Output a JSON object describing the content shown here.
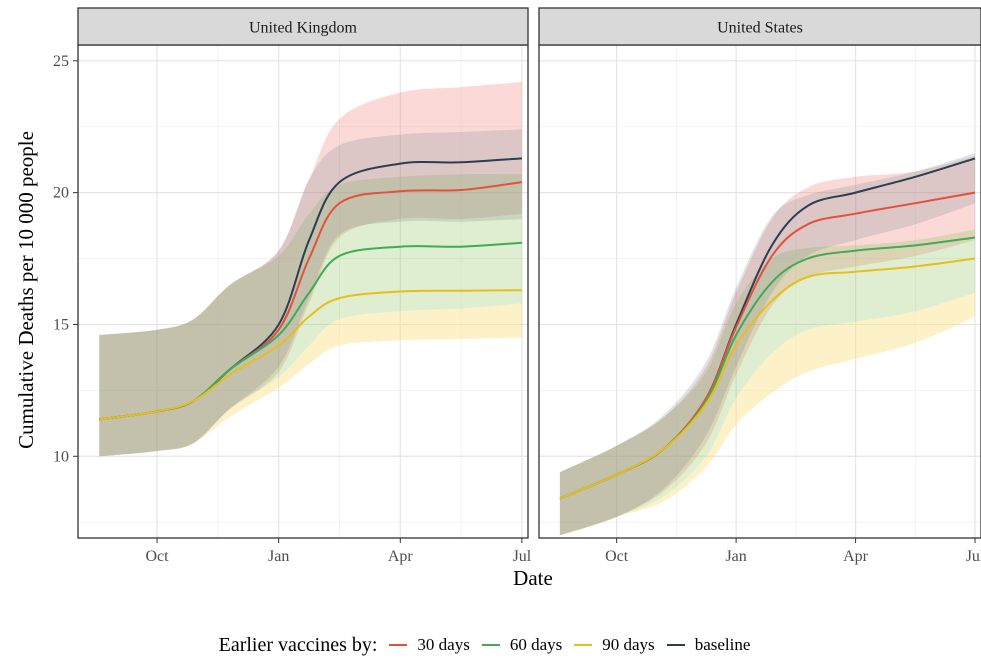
{
  "chart_data": {
    "type": "line",
    "ylabel": "Cumulative Deaths per 10 000 people",
    "xlabel": "Date",
    "ylim": [
      6.9,
      25.6
    ],
    "y_ticks": [
      10,
      15,
      20,
      25
    ],
    "x_ticks": [
      "Oct",
      "Jan",
      "Apr",
      "Jul"
    ],
    "legend_position": "bottom",
    "legend_title": "Earlier vaccines by:",
    "series_names": [
      "30 days",
      "60 days",
      "90 days",
      "baseline"
    ],
    "series_colors": {
      "30 days": "#E1523D",
      "60 days": "#3FAA59",
      "90 days": "#E6BE1E",
      "baseline": "#2C3E50"
    },
    "x_units": "months since 1 Oct",
    "facets": [
      {
        "title": "United Kingdom",
        "series": [
          {
            "name": "baseline",
            "x": [
              -0.95,
              0,
              0.6,
              1.2,
              2,
              2.5,
              3.0,
              4,
              5,
              6
            ],
            "values": [
              11.4,
              11.7,
              12.1,
              13.3,
              15.0,
              18.2,
              20.4,
              21.1,
              21.15,
              21.3
            ]
          },
          {
            "name": "30 days",
            "x": [
              -0.95,
              0,
              0.6,
              1.2,
              2,
              2.5,
              3.0,
              4,
              5,
              6
            ],
            "values": [
              11.4,
              11.7,
              12.1,
              13.3,
              14.8,
              17.5,
              19.6,
              20.05,
              20.1,
              20.4
            ]
          },
          {
            "name": "60 days",
            "x": [
              -0.95,
              0,
              0.6,
              1.2,
              2,
              2.5,
              3.0,
              4,
              5,
              6
            ],
            "values": [
              11.4,
              11.7,
              12.1,
              13.3,
              14.6,
              16.2,
              17.6,
              17.95,
              17.95,
              18.1
            ]
          },
          {
            "name": "90 days",
            "x": [
              -0.95,
              0,
              0.6,
              1.2,
              2,
              2.5,
              3.0,
              4,
              5,
              6
            ],
            "values": [
              11.4,
              11.7,
              12.1,
              13.1,
              14.2,
              15.3,
              16.0,
              16.25,
              16.28,
              16.3
            ]
          }
        ],
        "bands": [
          {
            "name": "30 days",
            "x": [
              -0.95,
              0,
              0.6,
              1.2,
              2,
              2.5,
              3.0,
              4,
              5,
              6
            ],
            "lower": [
              10.0,
              10.2,
              10.5,
              11.8,
              13.2,
              15.8,
              18.3,
              19.0,
              19.0,
              19.2
            ],
            "upper": [
              14.6,
              14.8,
              15.2,
              16.5,
              17.8,
              20.5,
              22.8,
              23.8,
              24.0,
              24.2
            ]
          },
          {
            "name": "60 days",
            "x": [
              -0.95,
              0,
              0.6,
              1.2,
              2,
              2.5,
              3.0,
              4,
              5,
              6
            ],
            "lower": [
              10.0,
              10.2,
              10.5,
              11.8,
              13.0,
              14.2,
              15.2,
              15.5,
              15.6,
              15.8
            ],
            "upper": [
              14.6,
              14.8,
              15.2,
              16.5,
              17.6,
              19.2,
              20.3,
              20.6,
              20.7,
              20.7
            ]
          },
          {
            "name": "90 days",
            "x": [
              -0.95,
              0,
              0.6,
              1.2,
              2,
              2.5,
              3.0,
              4,
              5,
              6
            ],
            "lower": [
              10.0,
              10.2,
              10.5,
              11.5,
              12.6,
              13.5,
              14.2,
              14.4,
              14.45,
              14.5
            ]
          },
          {
            "name": "baseline",
            "x": [
              -0.95,
              0,
              0.6,
              1.2,
              2,
              2.5,
              3.0,
              4,
              5,
              6
            ],
            "lower": [
              10.0,
              10.2,
              10.5,
              11.8,
              13.4,
              16.0,
              18.4,
              18.9,
              18.9,
              19.0
            ],
            "upper": [
              14.6,
              14.8,
              15.2,
              16.5,
              17.8,
              20.5,
              21.8,
              22.2,
              22.3,
              22.4
            ]
          }
        ]
      },
      {
        "title": "United States",
        "series": [
          {
            "name": "baseline",
            "x": [
              -0.95,
              0,
              0.8,
              1.5,
              2,
              2.6,
              3.2,
              4,
              5,
              6
            ],
            "values": [
              8.4,
              9.3,
              10.3,
              12.2,
              15.0,
              18.0,
              19.5,
              20.0,
              20.6,
              21.3
            ]
          },
          {
            "name": "30 days",
            "x": [
              -0.95,
              0,
              0.8,
              1.5,
              2,
              2.6,
              3.2,
              4,
              5,
              6
            ],
            "values": [
              8.4,
              9.3,
              10.3,
              12.2,
              14.9,
              17.6,
              18.8,
              19.2,
              19.6,
              20.0
            ]
          },
          {
            "name": "60 days",
            "x": [
              -0.95,
              0,
              0.8,
              1.5,
              2,
              2.6,
              3.2,
              4,
              5,
              6
            ],
            "values": [
              8.4,
              9.3,
              10.3,
              12.1,
              14.6,
              16.6,
              17.5,
              17.8,
              18.0,
              18.3
            ]
          },
          {
            "name": "90 days",
            "x": [
              -0.95,
              0,
              0.8,
              1.5,
              2,
              2.6,
              3.2,
              4,
              5,
              6
            ],
            "values": [
              8.4,
              9.3,
              10.3,
              12.0,
              14.2,
              15.9,
              16.8,
              17.0,
              17.2,
              17.5
            ]
          }
        ],
        "bands": [
          {
            "name": "30 days",
            "x": [
              -0.95,
              0,
              0.8,
              1.5,
              2,
              2.6,
              3.2,
              4,
              5,
              6
            ],
            "lower": [
              7.0,
              7.7,
              8.7,
              10.5,
              13.1,
              15.7,
              16.8,
              17.2,
              17.6,
              18.2
            ],
            "upper": [
              9.4,
              10.4,
              11.5,
              13.4,
              16.2,
              19.0,
              20.2,
              20.6,
              20.8,
              21.4
            ]
          },
          {
            "name": "60 days",
            "x": [
              -0.95,
              0,
              0.8,
              1.5,
              2,
              2.6,
              3.2,
              4,
              5,
              6
            ],
            "lower": [
              7.0,
              7.7,
              8.5,
              10.0,
              12.2,
              13.9,
              14.8,
              15.1,
              15.5,
              16.2
            ],
            "upper": [
              9.4,
              10.4,
              11.5,
              13.2,
              15.8,
              17.5,
              17.9,
              18.0,
              18.2,
              18.6
            ]
          },
          {
            "name": "90 days",
            "x": [
              -0.95,
              0,
              0.8,
              1.5,
              2,
              2.6,
              3.2,
              4,
              5,
              6
            ],
            "lower": [
              7.0,
              7.7,
              8.3,
              9.6,
              11.2,
              12.4,
              13.2,
              13.7,
              14.3,
              15.3
            ]
          },
          {
            "name": "baseline",
            "x": [
              -0.95,
              0,
              0.8,
              1.5,
              2,
              2.6,
              3.2,
              4,
              5,
              6
            ],
            "lower": [
              7.0,
              7.7,
              8.8,
              10.8,
              13.4,
              16.2,
              17.6,
              18.2,
              18.8,
              19.6
            ],
            "upper": [
              9.4,
              10.4,
              11.6,
              13.6,
              16.4,
              19.1,
              19.9,
              20.3,
              20.8,
              21.5
            ]
          }
        ]
      }
    ]
  }
}
